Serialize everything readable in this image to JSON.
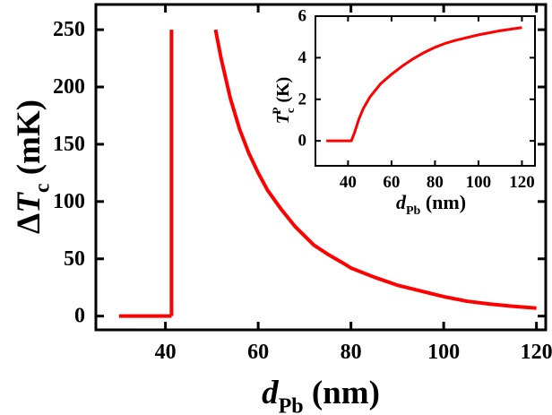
{
  "chart_data": [
    {
      "id": "main",
      "type": "line",
      "title": "",
      "xlabel": "d_Pb (nm)",
      "xlabel_parts": {
        "main": "d",
        "sub": "Pb",
        "unit": " (nm)"
      },
      "ylabel": "ΔT_c (mK)",
      "ylabel_parts": {
        "delta": "Δ",
        "main": "T",
        "sub": "c",
        "unit": " (mK)"
      },
      "xlim": [
        25,
        122
      ],
      "ylim": [
        -12,
        272
      ],
      "x_ticks": [
        40,
        60,
        80,
        100,
        120
      ],
      "y_ticks": [
        0,
        50,
        100,
        150,
        200,
        250
      ],
      "x_tick_labels": [
        "40",
        "60",
        "80",
        "100",
        "120"
      ],
      "y_tick_labels": [
        "0",
        "50",
        "100",
        "150",
        "200",
        "250"
      ],
      "grid": false,
      "legend": "none",
      "line_color": "#ff0000",
      "series": [
        {
          "segments": [
            {
              "x": [
                30,
                41.3
              ],
              "y": [
                0,
                0
              ]
            },
            {
              "x": [
                41.3,
                41.3
              ],
              "y": [
                0,
                250
              ]
            },
            {
              "x": [
                50.8,
                52,
                54,
                56,
                58,
                60,
                62,
                65,
                68,
                70,
                72,
                75,
                78,
                80,
                85,
                90,
                95,
                100,
                105,
                110,
                115,
                120
              ],
              "y": [
                250,
                225,
                190,
                163,
                142,
                125,
                110,
                93,
                78,
                70,
                62,
                54,
                47,
                42,
                34,
                27,
                22,
                17,
                13,
                10.5,
                8.5,
                7
              ]
            }
          ]
        }
      ]
    },
    {
      "id": "inset",
      "type": "line",
      "title": "",
      "xlabel": "d_Pb (nm)",
      "xlabel_parts": {
        "main": "d",
        "sub": "Pb",
        "unit": " (nm)"
      },
      "ylabel": "T_c^P (K)",
      "ylabel_parts": {
        "main": "T",
        "sub": "c",
        "sup": "P",
        "unit": " (K)"
      },
      "xlim": [
        25,
        126
      ],
      "ylim": [
        -1.2,
        6
      ],
      "x_ticks": [
        40,
        60,
        80,
        100,
        120
      ],
      "y_ticks": [
        0,
        2,
        4,
        6
      ],
      "x_tick_labels": [
        "40",
        "60",
        "80",
        "100",
        "120"
      ],
      "y_tick_labels": [
        "0",
        "2",
        "4",
        "6"
      ],
      "grid": false,
      "legend": "none",
      "line_color": "#ff0000",
      "series": [
        {
          "segments": [
            {
              "x": [
                30,
                41.5,
                43,
                45,
                47,
                50,
                55,
                60,
                65,
                70,
                75,
                80,
                85,
                90,
                100,
                110,
                120
              ],
              "y": [
                0,
                0,
                0.4,
                1.05,
                1.55,
                2.1,
                2.75,
                3.2,
                3.6,
                3.95,
                4.25,
                4.5,
                4.7,
                4.85,
                5.1,
                5.3,
                5.45
              ]
            }
          ]
        }
      ]
    }
  ]
}
